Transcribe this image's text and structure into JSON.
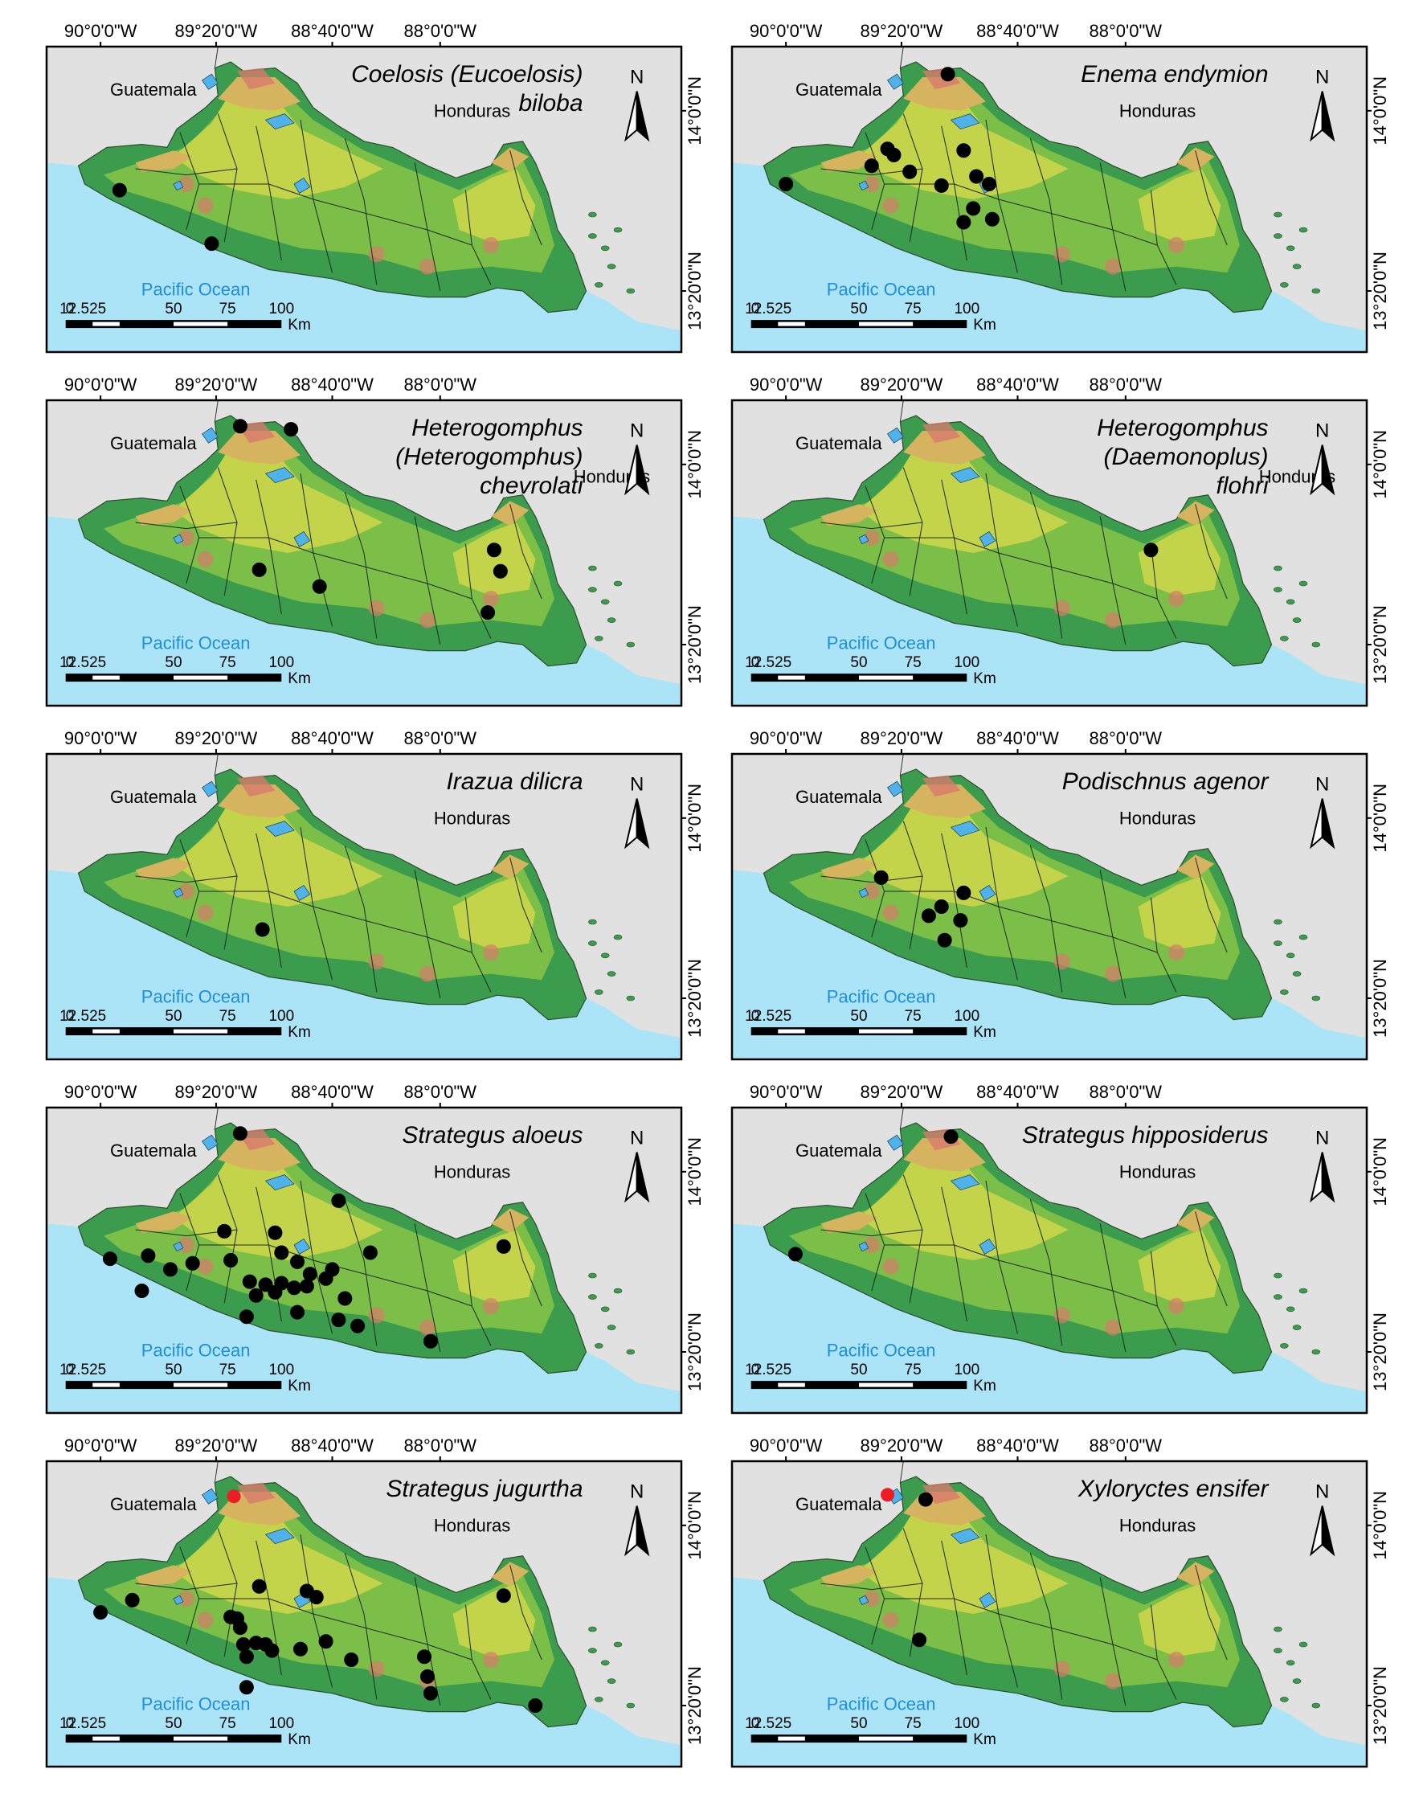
{
  "colors": {
    "ocean": "#abe4f7",
    "land_outside": "#e1e1e1",
    "lowland": "#3a9c4c",
    "midland": "#7cbf48",
    "upland": "#c3d34a",
    "highland": "#d6b35e",
    "peak": "#d77a6b",
    "lake": "#4fb3e9",
    "occurrence_black": "#000000",
    "occurrence_red": "#ee1c24",
    "ocean_label": "#1f8fd9"
  },
  "common": {
    "longitudes": [
      "90°0'0\"W",
      "89°20'0\"W",
      "88°40'0\"W",
      "88°0'0\"W"
    ],
    "latitudes": [
      "14°0'0\"N",
      "13°20'0\"N"
    ],
    "north_label": "N",
    "ocean_label": "Pacific Ocean",
    "guatemala_label": "Guatemala",
    "honduras_label": "Honduras",
    "scale_ticks": [
      "0",
      "12.525",
      "50",
      "75",
      "100"
    ],
    "scale_unit": "Km"
  },
  "panels": [
    {
      "species": [
        "Coelosis (Eucoelosis)",
        "biloba"
      ],
      "points": [
        [
          0.115,
          0.47,
          "black"
        ],
        [
          0.26,
          0.645,
          "black"
        ]
      ]
    },
    {
      "species": [
        "Enema endymion"
      ],
      "points": [
        [
          0.34,
          0.09,
          "black"
        ],
        [
          0.245,
          0.335,
          "black"
        ],
        [
          0.255,
          0.355,
          "black"
        ],
        [
          0.22,
          0.39,
          "black"
        ],
        [
          0.28,
          0.41,
          "black"
        ],
        [
          0.365,
          0.34,
          "black"
        ],
        [
          0.385,
          0.425,
          "black"
        ],
        [
          0.405,
          0.45,
          "black"
        ],
        [
          0.33,
          0.455,
          "black"
        ],
        [
          0.38,
          0.53,
          "black"
        ],
        [
          0.365,
          0.575,
          "black"
        ],
        [
          0.41,
          0.565,
          "black"
        ],
        [
          0.085,
          0.45,
          "black"
        ]
      ]
    },
    {
      "species": [
        "Heterogomphus",
        "(Heterogomphus)",
        "chevrolati"
      ],
      "points": [
        [
          0.305,
          0.085,
          "black"
        ],
        [
          0.385,
          0.095,
          "black"
        ],
        [
          0.335,
          0.555,
          "black"
        ],
        [
          0.43,
          0.61,
          "black"
        ],
        [
          0.705,
          0.49,
          "black"
        ],
        [
          0.715,
          0.56,
          "black"
        ],
        [
          0.695,
          0.695,
          "black"
        ]
      ]
    },
    {
      "species": [
        "Heterogomphus",
        "(Daemonoplus)",
        "flohri"
      ],
      "points": [
        [
          0.66,
          0.49,
          "black"
        ]
      ]
    },
    {
      "species": [
        "Irazua dilicra"
      ],
      "points": [
        [
          0.34,
          0.575,
          "black"
        ]
      ]
    },
    {
      "species": [
        "Podischnus agenor"
      ],
      "points": [
        [
          0.235,
          0.405,
          "black"
        ],
        [
          0.365,
          0.455,
          "black"
        ],
        [
          0.33,
          0.5,
          "black"
        ],
        [
          0.31,
          0.53,
          "black"
        ],
        [
          0.36,
          0.545,
          "black"
        ],
        [
          0.335,
          0.61,
          "black"
        ]
      ]
    },
    {
      "species": [
        "Strategus aloeus"
      ],
      "points": [
        [
          0.305,
          0.085,
          "black"
        ],
        [
          0.46,
          0.305,
          "black"
        ],
        [
          0.28,
          0.405,
          "black"
        ],
        [
          0.36,
          0.41,
          "black"
        ],
        [
          0.51,
          0.475,
          "black"
        ],
        [
          0.72,
          0.455,
          "black"
        ],
        [
          0.16,
          0.485,
          "black"
        ],
        [
          0.195,
          0.53,
          "black"
        ],
        [
          0.1,
          0.495,
          "black"
        ],
        [
          0.23,
          0.51,
          "black"
        ],
        [
          0.29,
          0.5,
          "black"
        ],
        [
          0.37,
          0.475,
          "black"
        ],
        [
          0.395,
          0.505,
          "black"
        ],
        [
          0.415,
          0.545,
          "black"
        ],
        [
          0.45,
          0.53,
          "black"
        ],
        [
          0.44,
          0.56,
          "black"
        ],
        [
          0.32,
          0.57,
          "black"
        ],
        [
          0.345,
          0.58,
          "black"
        ],
        [
          0.37,
          0.575,
          "black"
        ],
        [
          0.39,
          0.59,
          "black"
        ],
        [
          0.36,
          0.605,
          "black"
        ],
        [
          0.41,
          0.585,
          "black"
        ],
        [
          0.33,
          0.615,
          "black"
        ],
        [
          0.47,
          0.625,
          "black"
        ],
        [
          0.395,
          0.67,
          "black"
        ],
        [
          0.315,
          0.685,
          "black"
        ],
        [
          0.46,
          0.695,
          "black"
        ],
        [
          0.49,
          0.715,
          "black"
        ],
        [
          0.605,
          0.765,
          "black"
        ],
        [
          0.15,
          0.6,
          "black"
        ]
      ]
    },
    {
      "species": [
        "Strategus hipposiderus"
      ],
      "points": [
        [
          0.345,
          0.095,
          "black"
        ],
        [
          0.1,
          0.48,
          "black"
        ]
      ]
    },
    {
      "species": [
        "Strategus jugurtha"
      ],
      "points": [
        [
          0.295,
          0.115,
          "red"
        ],
        [
          0.135,
          0.455,
          "black"
        ],
        [
          0.085,
          0.495,
          "black"
        ],
        [
          0.3,
          0.515,
          "black"
        ],
        [
          0.29,
          0.51,
          "black"
        ],
        [
          0.335,
          0.41,
          "black"
        ],
        [
          0.41,
          0.425,
          "black"
        ],
        [
          0.425,
          0.445,
          "black"
        ],
        [
          0.72,
          0.44,
          "black"
        ],
        [
          0.305,
          0.545,
          "black"
        ],
        [
          0.31,
          0.6,
          "black"
        ],
        [
          0.33,
          0.595,
          "black"
        ],
        [
          0.345,
          0.6,
          "black"
        ],
        [
          0.355,
          0.62,
          "black"
        ],
        [
          0.4,
          0.615,
          "black"
        ],
        [
          0.315,
          0.64,
          "black"
        ],
        [
          0.44,
          0.59,
          "black"
        ],
        [
          0.48,
          0.65,
          "black"
        ],
        [
          0.595,
          0.64,
          "black"
        ],
        [
          0.6,
          0.705,
          "black"
        ],
        [
          0.605,
          0.76,
          "black"
        ],
        [
          0.315,
          0.74,
          "black"
        ],
        [
          0.77,
          0.8,
          "black"
        ]
      ]
    },
    {
      "species": [
        "Xyloryctes ensifer"
      ],
      "points": [
        [
          0.245,
          0.11,
          "red"
        ],
        [
          0.305,
          0.125,
          "black"
        ],
        [
          0.295,
          0.585,
          "black"
        ]
      ]
    }
  ]
}
